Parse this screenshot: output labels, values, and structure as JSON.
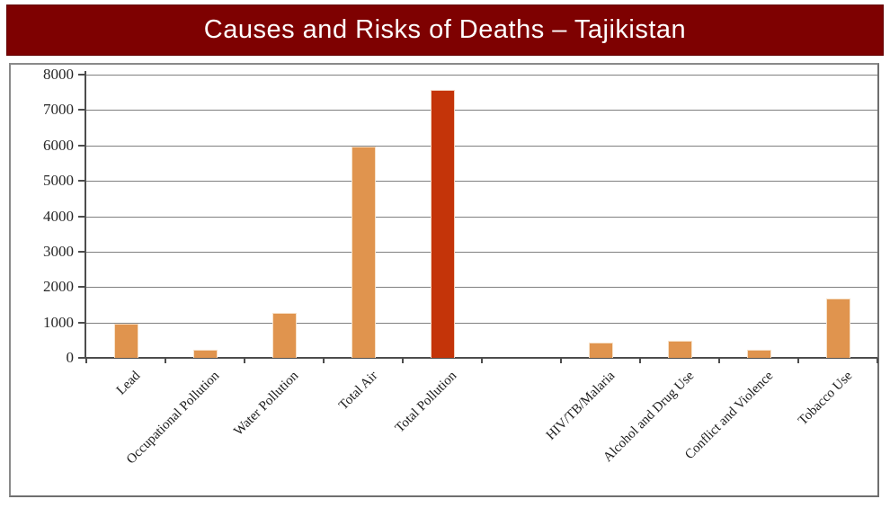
{
  "banner": {
    "title": "Causes and Risks of Deaths – Tajikistan",
    "background": "#7E0101",
    "text_color": "#FFFFFF"
  },
  "chart_data": {
    "type": "bar",
    "title": "Causes and Risks of Deaths – Tajikistan",
    "categories": [
      "Lead",
      "Occupational Pollution",
      "Water Pollution",
      "Total Air",
      "Total Pollution",
      "",
      "HIV/TB/Malaria",
      "Alcohol and Drug Use",
      "Conflict and Violence",
      "Tobacco Use"
    ],
    "values": [
      970,
      220,
      1270,
      5980,
      7580,
      0,
      430,
      480,
      220,
      1680
    ],
    "bar_colors": [
      "#E0944E",
      "#E0944E",
      "#E0944E",
      "#E0944E",
      "#C43409",
      "#E0944E",
      "#E0944E",
      "#E0944E",
      "#E0944E",
      "#E0944E"
    ],
    "highlighted_category": "Total Pollution",
    "xlabel": "",
    "ylabel": "",
    "ylim": [
      0,
      8000
    ],
    "ytick_interval": 1000,
    "yticks": [
      0,
      1000,
      2000,
      3000,
      4000,
      5000,
      6000,
      7000,
      8000
    ],
    "grid": true,
    "legend_position": "none"
  },
  "colors": {
    "bar_default": "#E0944E",
    "bar_highlight": "#C43409",
    "gridline": "#808080",
    "axis": "#4D4D4D",
    "tick_label": "#262626",
    "panel_border": "#8A8A8A",
    "banner_background": "#7E0101"
  }
}
